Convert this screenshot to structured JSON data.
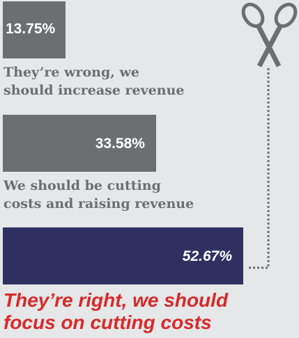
{
  "chart_data": {
    "type": "bar",
    "orientation": "horizontal",
    "categories": [
      "They’re wrong, we\nshould increase revenue",
      "We should be cutting\ncosts and raising revenue",
      "They’re right, we should\nfocus on cutting costs"
    ],
    "values": [
      13.75,
      33.58,
      52.67
    ],
    "value_labels": [
      "13.75%",
      "33.58%",
      "52.67%"
    ],
    "colors": [
      "#6d6e70",
      "#6d6e70",
      "#2e3160"
    ],
    "highlight": 2
  }
}
